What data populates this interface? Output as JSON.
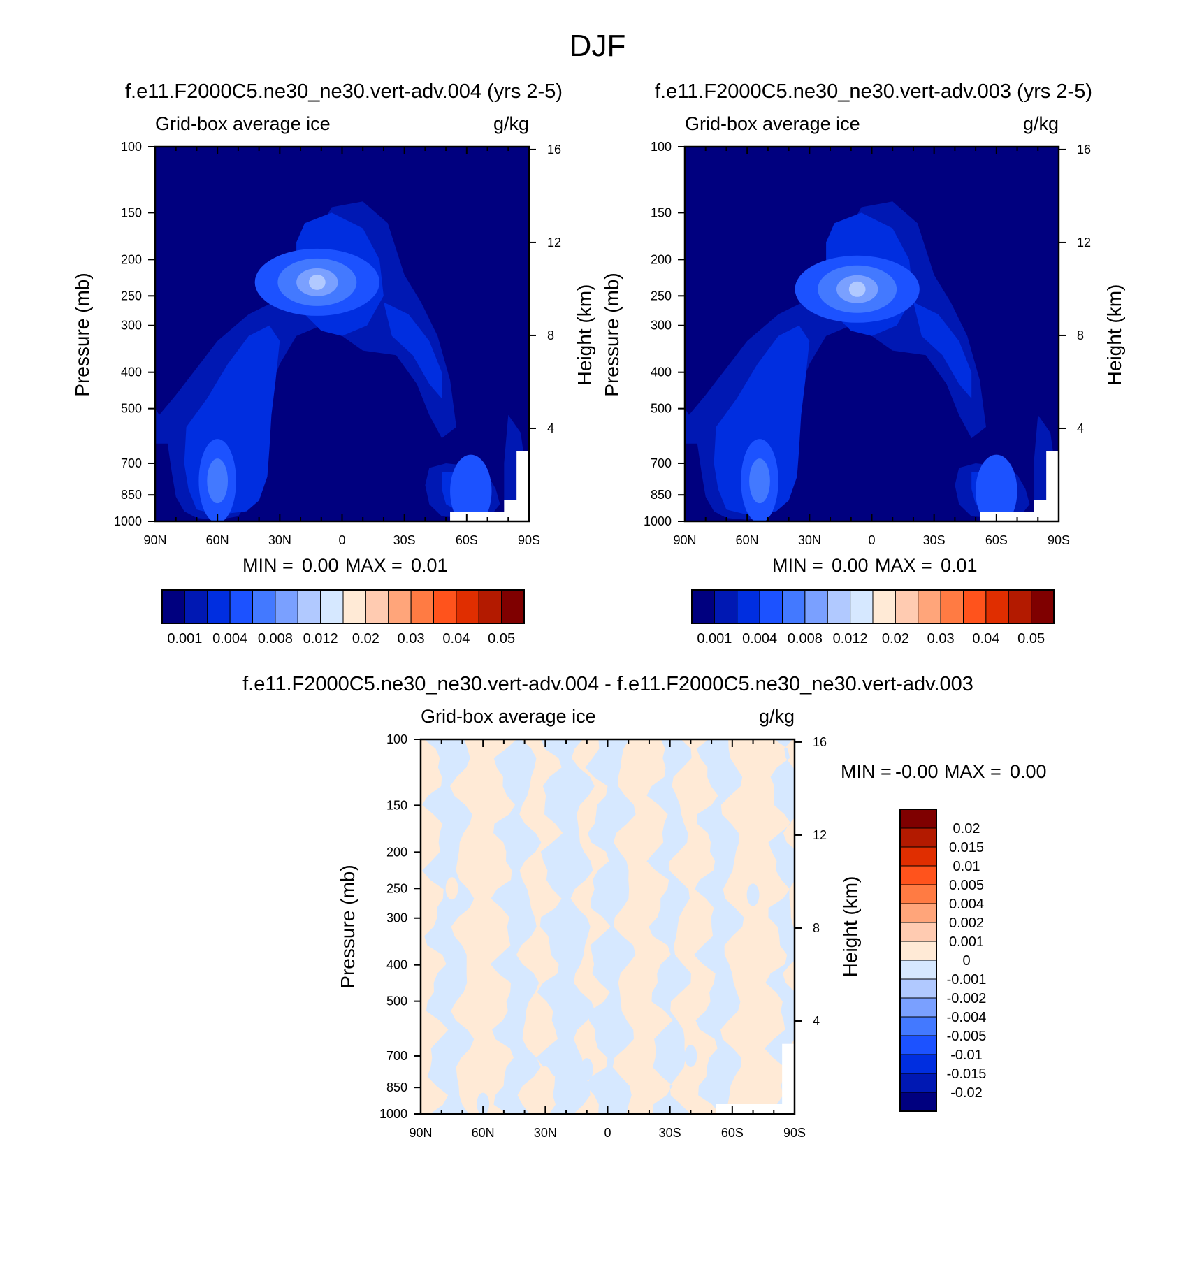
{
  "figure": {
    "title": "DJF",
    "colors": {
      "field_levels": [
        "#00007f",
        "#0018b3",
        "#002ee0",
        "#1c52ff",
        "#4379ff",
        "#7aa0ff",
        "#b1c9ff",
        "#d6e8ff",
        "#ffead6",
        "#ffcbb1",
        "#ffa57a",
        "#ff7b43",
        "#ff531c",
        "#e02e00",
        "#b31a00",
        "#7f0000"
      ],
      "diff_levels": [
        "#00007f",
        "#0018b3",
        "#002ee0",
        "#1c52ff",
        "#4379ff",
        "#7aa0ff",
        "#b1c9ff",
        "#d6e8ff",
        "#ffead6",
        "#ffcbb1",
        "#ffa57a",
        "#ff7b43",
        "#ff531c",
        "#e02e00",
        "#b31a00",
        "#7f0000"
      ]
    }
  },
  "chart_data": [
    {
      "type": "heatmap",
      "title": "f.e11.F2000C5.ne30_ne30.vert-adv.004 (yrs 2-5)",
      "left_label": "Grid-box average ice",
      "right_label": "g/kg",
      "ylabel": "Pressure (mb)",
      "ylabel_right": "Height (km)",
      "x_ticks": [
        "90N",
        "60N",
        "30N",
        "0",
        "30S",
        "60S",
        "90S"
      ],
      "x_values": [
        90,
        60,
        30,
        0,
        -30,
        -60,
        -90
      ],
      "y_ticks": [
        "100",
        "150",
        "200",
        "250",
        "300",
        "400",
        "500",
        "700",
        "850",
        "1000"
      ],
      "y_values": [
        100,
        150,
        200,
        250,
        300,
        400,
        500,
        700,
        850,
        1000
      ],
      "y_scale": "log",
      "height_ticks": [
        "16",
        "12",
        "8",
        "4"
      ],
      "height_values": [
        16,
        12,
        8,
        4
      ],
      "stats": {
        "min_label": "MIN =",
        "min": "0.00",
        "max_label": "MAX =",
        "max": "0.01"
      },
      "colorbar_labels": [
        "0.001",
        "0.004",
        "0.008",
        "0.012",
        "0.02",
        "0.03",
        "0.04",
        "0.05"
      ],
      "features": [
        {
          "lat": 12,
          "p": 230,
          "level": 6
        },
        {
          "lat": 60,
          "p": 780,
          "level": 4
        },
        {
          "lat": -62,
          "p": 830,
          "level": 3
        }
      ]
    },
    {
      "type": "heatmap",
      "title": "f.e11.F2000C5.ne30_ne30.vert-adv.003 (yrs 2-5)",
      "left_label": "Grid-box average ice",
      "right_label": "g/kg",
      "ylabel": "Pressure (mb)",
      "ylabel_right": "Height (km)",
      "x_ticks": [
        "90N",
        "60N",
        "30N",
        "0",
        "30S",
        "60S",
        "90S"
      ],
      "x_values": [
        90,
        60,
        30,
        0,
        -30,
        -60,
        -90
      ],
      "y_ticks": [
        "100",
        "150",
        "200",
        "250",
        "300",
        "400",
        "500",
        "700",
        "850",
        "1000"
      ],
      "y_values": [
        100,
        150,
        200,
        250,
        300,
        400,
        500,
        700,
        850,
        1000
      ],
      "y_scale": "log",
      "height_ticks": [
        "16",
        "12",
        "8",
        "4"
      ],
      "height_values": [
        16,
        12,
        8,
        4
      ],
      "stats": {
        "min_label": "MIN =",
        "min": "0.00",
        "max_label": "MAX =",
        "max": "0.01"
      },
      "colorbar_labels": [
        "0.001",
        "0.004",
        "0.008",
        "0.012",
        "0.02",
        "0.03",
        "0.04",
        "0.05"
      ],
      "features": [
        {
          "lat": 7,
          "p": 240,
          "level": 6
        },
        {
          "lat": 54,
          "p": 780,
          "level": 4
        },
        {
          "lat": -60,
          "p": 830,
          "level": 3
        }
      ]
    },
    {
      "type": "heatmap",
      "title": "f.e11.F2000C5.ne30_ne30.vert-adv.004 - f.e11.F2000C5.ne30_ne30.vert-adv.003",
      "left_label": "Grid-box average ice",
      "right_label": "g/kg",
      "ylabel": "Pressure (mb)",
      "ylabel_right": "Height (km)",
      "x_ticks": [
        "90N",
        "60N",
        "30N",
        "0",
        "30S",
        "60S",
        "90S"
      ],
      "x_values": [
        90,
        60,
        30,
        0,
        -30,
        -60,
        -90
      ],
      "y_ticks": [
        "100",
        "150",
        "200",
        "250",
        "300",
        "400",
        "500",
        "700",
        "850",
        "1000"
      ],
      "y_values": [
        100,
        150,
        200,
        250,
        300,
        400,
        500,
        700,
        850,
        1000
      ],
      "y_scale": "log",
      "height_ticks": [
        "16",
        "12",
        "8",
        "4"
      ],
      "height_values": [
        16,
        12,
        8,
        4
      ],
      "stats": {
        "min_label": "MIN =",
        "min": "-0.00",
        "max_label": "MAX =",
        "max": "0.00"
      },
      "colorbar_labels": [
        "0.02",
        "0.015",
        "0.01",
        "0.005",
        "0.004",
        "0.002",
        "0.001",
        "0",
        "-0.001",
        "-0.002",
        "-0.004",
        "-0.005",
        "-0.01",
        "-0.015",
        "-0.02"
      ],
      "band_edges_lat": [
        90,
        83,
        70,
        50,
        38,
        28,
        12,
        5,
        -8,
        -25,
        -35,
        -48,
        -60,
        -82,
        -90
      ],
      "band_values": [
        "pos",
        "neg",
        "pos",
        "neg",
        "pos",
        "neg",
        "pos",
        "neg",
        "pos",
        "neg",
        "pos",
        "neg",
        "pos",
        "neg"
      ]
    }
  ]
}
